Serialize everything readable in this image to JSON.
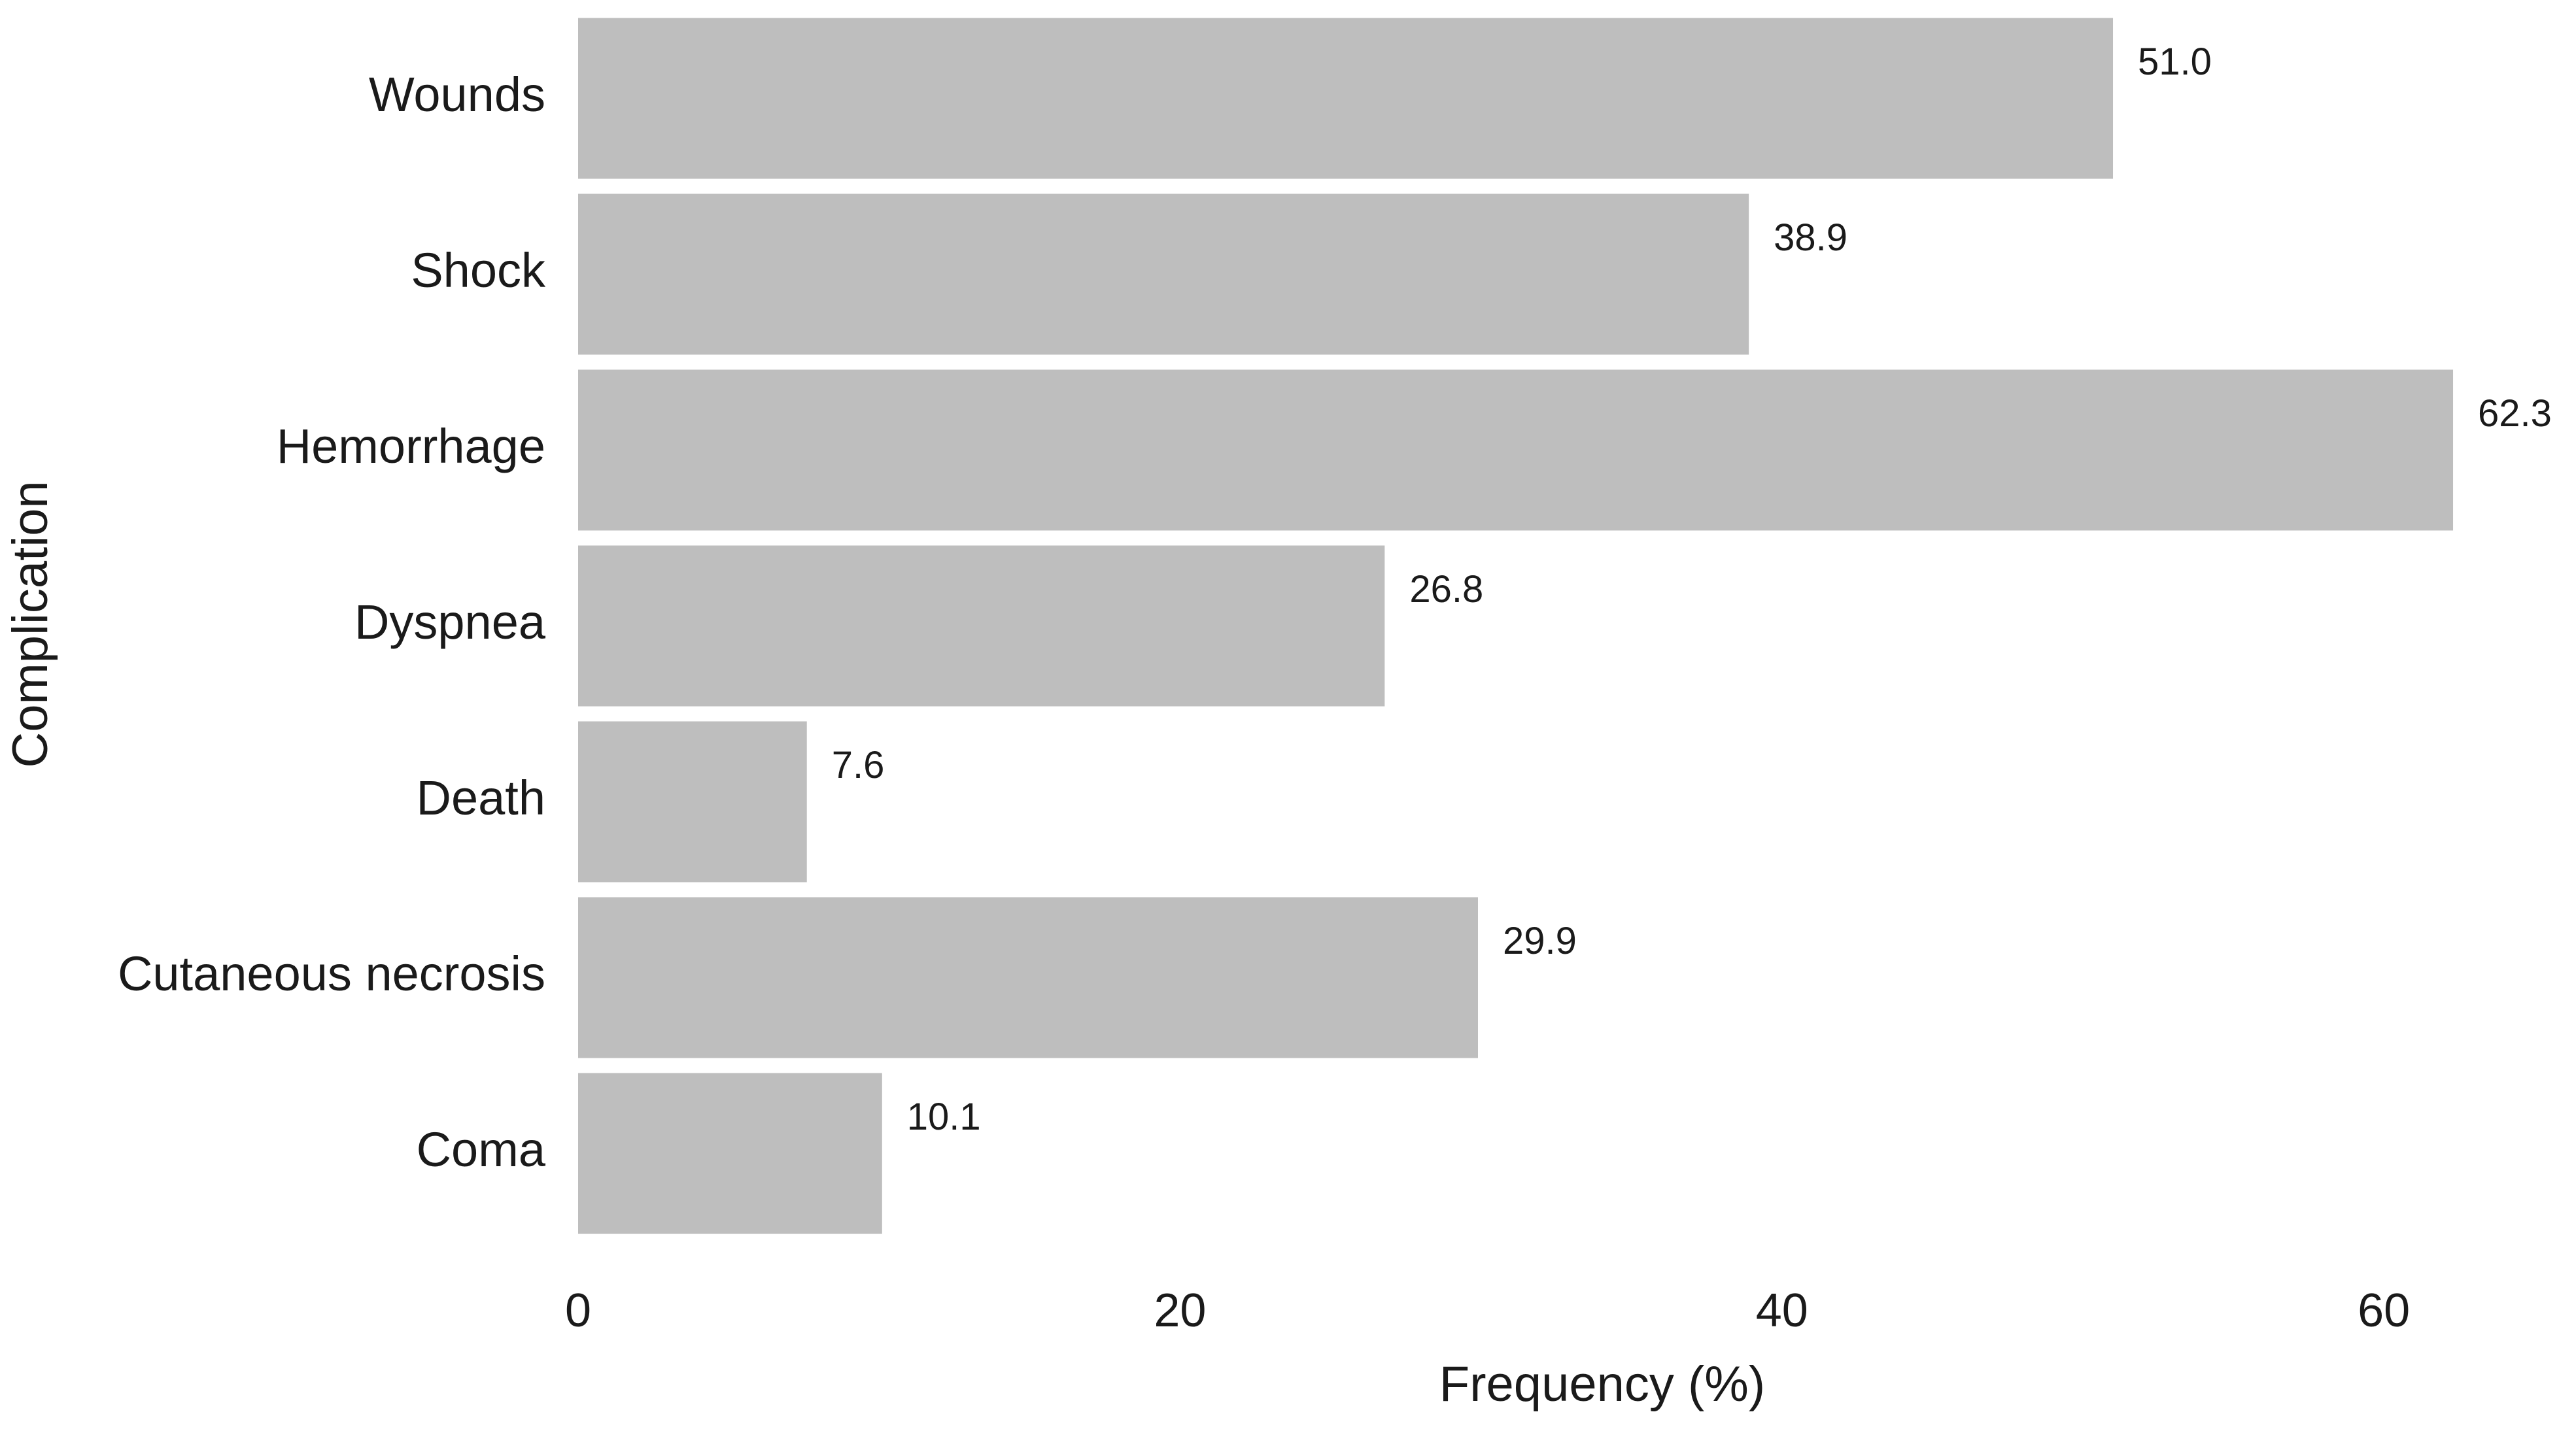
{
  "chart_data": {
    "type": "bar",
    "orientation": "horizontal",
    "x_label": "Frequency (%)",
    "y_label": "Complication",
    "categories": [
      "Wounds",
      "Shock",
      "Hemorrhage",
      "Dyspnea",
      "Death",
      "Cutaneous necrosis",
      "Coma"
    ],
    "values": [
      51.0,
      38.9,
      62.3,
      26.8,
      7.6,
      29.9,
      10.1
    ],
    "value_labels": [
      "51.0",
      "38.9",
      "62.3",
      "26.8",
      "7.6",
      "29.9",
      "10.1"
    ],
    "color": "#bebebe",
    "xlim": [
      0,
      66
    ],
    "xticks": [
      0,
      20,
      40,
      60
    ],
    "grid": false
  }
}
